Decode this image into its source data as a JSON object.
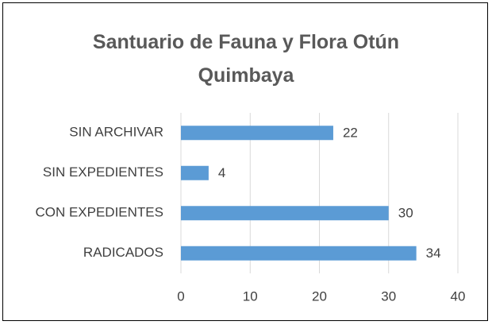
{
  "chart_data": {
    "type": "bar",
    "orientation": "horizontal",
    "title": "Santuario de Fauna y Flora Otún Quimbaya",
    "categories": [
      "SIN ARCHIVAR",
      "SIN EXPEDIENTES",
      "CON EXPEDIENTES",
      "RADICADOS"
    ],
    "values": [
      22,
      4,
      30,
      34
    ],
    "color": "#5b9bd5",
    "xlim": [
      0,
      40
    ],
    "xticks": [
      0,
      10,
      20,
      30,
      40
    ],
    "grid": true
  }
}
